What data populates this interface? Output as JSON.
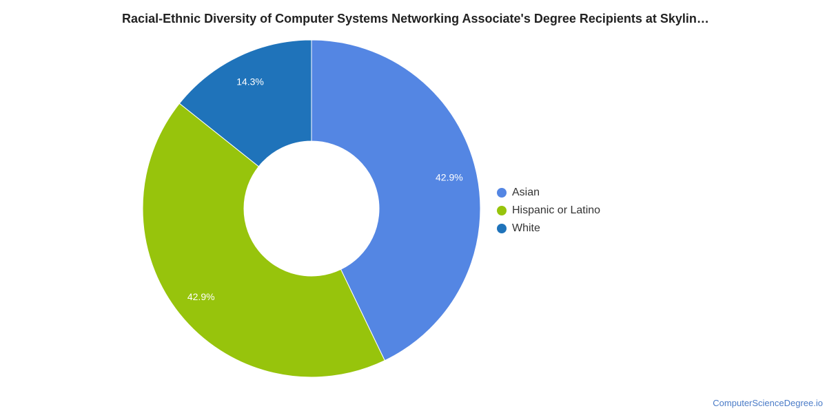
{
  "chart_data": {
    "type": "pie",
    "variant": "donut",
    "title": "Racial-Ethnic Diversity of Computer Systems Networking Associate's Degree Recipients at Skylin…",
    "slices": [
      {
        "name": "Asian",
        "value": 42.9,
        "label": "42.9%",
        "color": "#5486e3"
      },
      {
        "name": "Hispanic or Latino",
        "value": 42.9,
        "label": "42.9%",
        "color": "#97c40c"
      },
      {
        "name": "White",
        "value": 14.3,
        "label": "14.3%",
        "color": "#1f73ba"
      }
    ],
    "legend_position": "right",
    "start_angle": "top",
    "direction": "clockwise"
  },
  "footer": {
    "credit": "ComputerScienceDegree.io"
  }
}
